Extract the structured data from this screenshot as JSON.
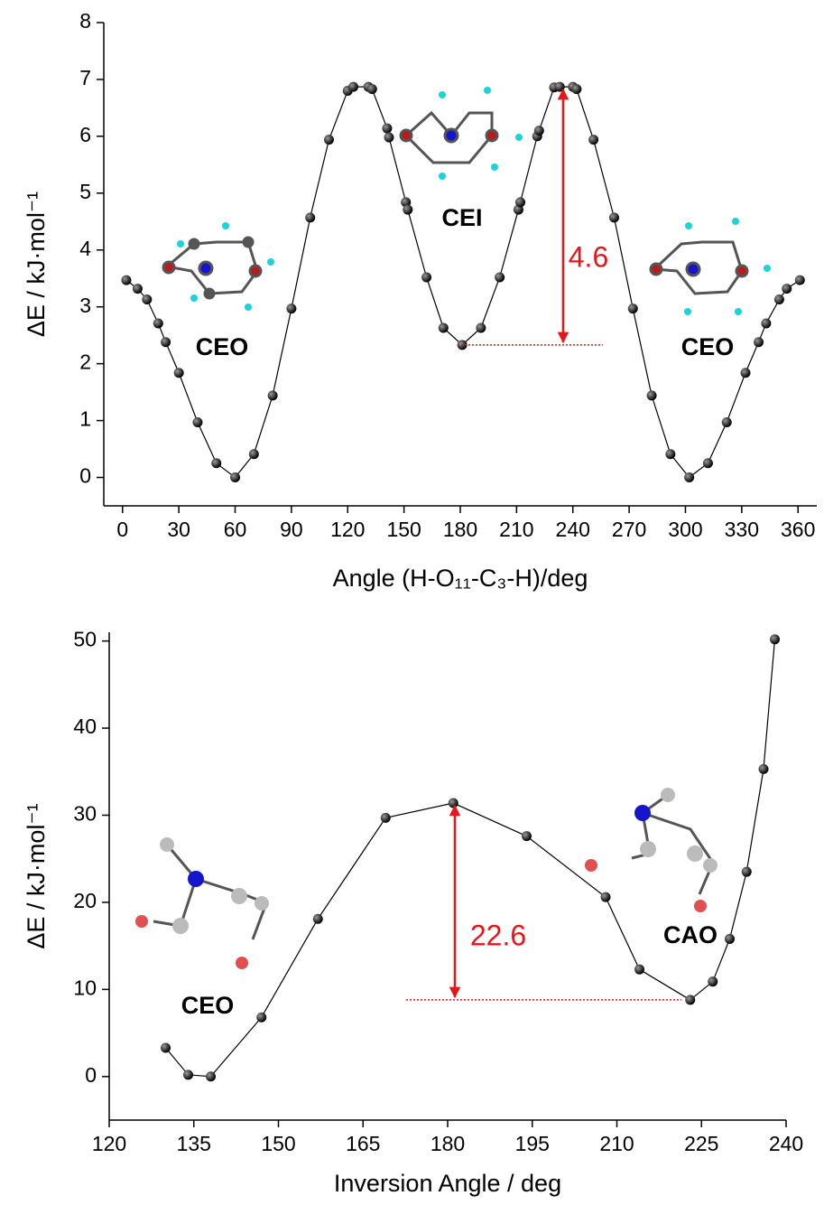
{
  "chart_data": [
    {
      "type": "line",
      "y_label": "ΔE / kJ·mol⁻¹",
      "x_label": "Angle (H-O₁₁-C₃-H)/deg",
      "x": [
        2,
        8,
        13,
        19,
        23,
        30,
        40,
        50,
        60,
        70,
        80,
        90,
        100,
        110,
        120,
        123,
        131,
        133,
        141,
        142,
        151,
        152,
        162,
        171,
        181,
        191,
        201,
        211,
        212,
        221,
        222,
        230,
        233,
        240,
        242,
        251,
        262,
        272,
        282,
        292,
        302,
        312,
        322,
        332,
        339,
        343,
        350,
        354,
        361
      ],
      "series": [
        {
          "color": "#000000",
          "values": [
            3.47,
            3.32,
            3.13,
            2.71,
            2.38,
            1.84,
            0.97,
            0.25,
            0,
            0.41,
            1.44,
            2.97,
            4.57,
            5.94,
            6.8,
            6.87,
            6.87,
            6.83,
            6.14,
            5.98,
            4.84,
            4.71,
            3.52,
            2.63,
            2.33,
            2.63,
            3.52,
            4.71,
            4.84,
            6.0,
            6.1,
            6.86,
            6.87,
            6.87,
            6.83,
            5.94,
            4.57,
            2.97,
            1.44,
            0.41,
            0,
            0.25,
            0.97,
            1.84,
            2.38,
            2.71,
            3.13,
            3.32,
            3.47
          ]
        }
      ],
      "xlim": [
        -10,
        370
      ],
      "ylim": [
        -0.5,
        8
      ],
      "xticks": [
        0,
        30,
        60,
        90,
        120,
        150,
        180,
        210,
        240,
        270,
        300,
        330,
        360
      ],
      "yticks": [
        0,
        1,
        2,
        3,
        4,
        5,
        6,
        7,
        8
      ],
      "annotations": [
        "CEO",
        "CEI",
        "CEO",
        "4.6"
      ]
    },
    {
      "type": "line",
      "y_label": "ΔE / kJ·mol⁻¹",
      "x_label": "Inversion Angle / deg",
      "x": [
        130,
        134,
        138,
        147,
        157,
        169,
        181,
        194,
        208,
        214,
        223,
        227,
        230,
        233,
        236,
        238
      ],
      "series": [
        {
          "color": "#000000",
          "values": [
            3.3,
            0.2,
            0,
            6.8,
            18.1,
            29.7,
            31.4,
            27.6,
            20.6,
            12.3,
            8.8,
            10.9,
            15.8,
            23.5,
            35.3,
            50.2
          ]
        }
      ],
      "xlim": [
        120,
        240
      ],
      "ylim": [
        -5,
        51
      ],
      "xticks": [
        120,
        135,
        150,
        165,
        180,
        195,
        210,
        225,
        240
      ],
      "yticks": [
        0,
        10,
        20,
        30,
        40,
        50
      ],
      "annotations": [
        "CEO",
        "CAO",
        "22.6"
      ]
    }
  ]
}
